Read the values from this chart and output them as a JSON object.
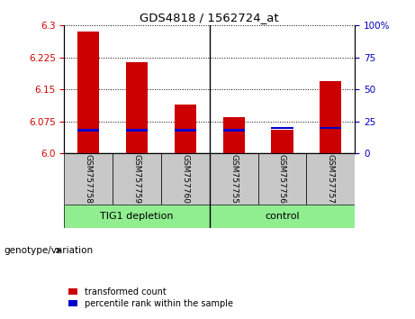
{
  "title": "GDS4818 / 1562724_at",
  "samples": [
    "GSM757758",
    "GSM757759",
    "GSM757760",
    "GSM757755",
    "GSM757756",
    "GSM757757"
  ],
  "transformed_counts": [
    6.285,
    6.215,
    6.115,
    6.085,
    6.055,
    6.17
  ],
  "percentile_ranks": [
    18,
    18,
    18,
    18,
    20,
    20
  ],
  "group_separator_index": 3,
  "group_labels": [
    "TIG1 depletion",
    "control"
  ],
  "group_ranges": [
    [
      0,
      3
    ],
    [
      3,
      6
    ]
  ],
  "group_color": "#90EE90",
  "sample_cell_color": "#C8C8C8",
  "ylim_left": [
    6.0,
    6.3
  ],
  "ylim_right": [
    0,
    100
  ],
  "yticks_left": [
    6.0,
    6.075,
    6.15,
    6.225,
    6.3
  ],
  "yticks_right": [
    0,
    25,
    50,
    75,
    100
  ],
  "bar_color_red": "#CC0000",
  "bar_color_blue": "#0000CC",
  "left_tick_color": "#CC0000",
  "right_tick_color": "#0000BB",
  "bg_color": "#FFFFFF",
  "legend_items": [
    "transformed count",
    "percentile rank within the sample"
  ],
  "genotype_label": "genotype/variation"
}
